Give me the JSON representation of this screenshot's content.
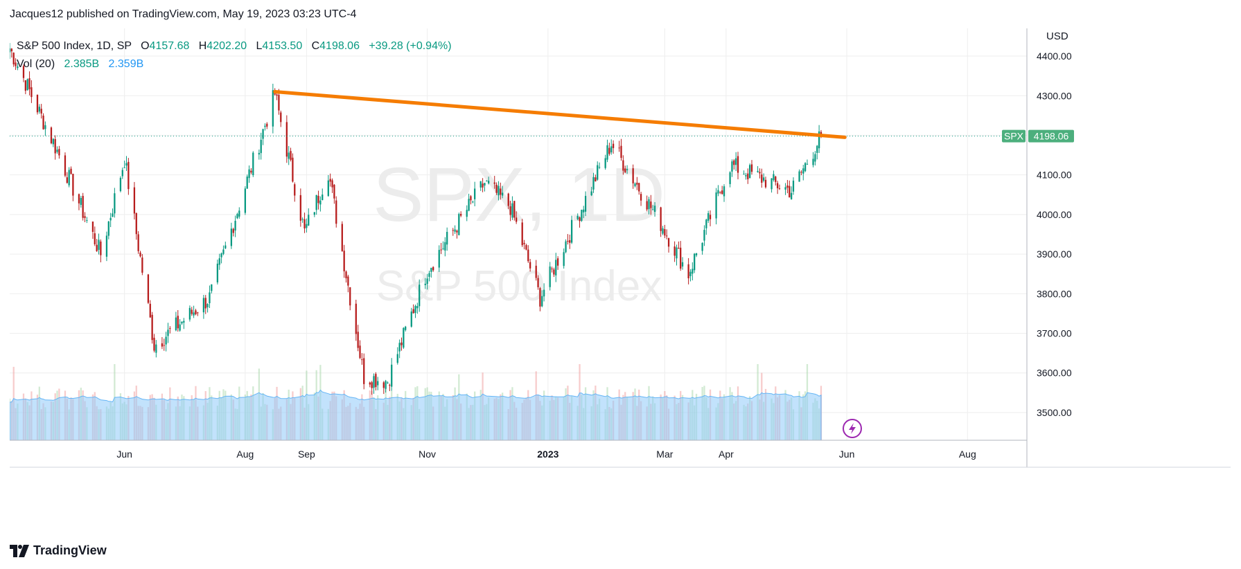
{
  "header": {
    "published": "Jacques12 published on TradingView.com, May 19, 2023 03:23 UTC-4"
  },
  "legend": {
    "symbol_desc": "S&P 500 Index, 1D, SP",
    "open_label": "O",
    "open": "4157.68",
    "high_label": "H",
    "high": "4202.20",
    "low_label": "L",
    "low": "4153.50",
    "close_label": "C",
    "close": "4198.06",
    "change": "+39.28 (+0.94%)",
    "vol_label": "Vol (20)",
    "vol_value": "2.385B",
    "vol_ma": "2.359B"
  },
  "watermark": {
    "main": "SPX, 1D",
    "sub": "S&P 500 Index"
  },
  "price_axis": {
    "currency": "USD",
    "ticks": [
      "4400.00",
      "4300.00",
      "4200.00",
      "4100.00",
      "4000.00",
      "3900.00",
      "3800.00",
      "3700.00",
      "3600.00",
      "3500.00"
    ]
  },
  "last_price": {
    "symbol": "SPX",
    "price": "4198.06"
  },
  "time_axis": {
    "ticks": [
      "Jun",
      "Aug",
      "Sep",
      "Nov",
      "2023",
      "Mar",
      "Apr",
      "Jun",
      "Aug"
    ]
  },
  "footer": {
    "brand": "TradingView"
  },
  "colors": {
    "up": "#089981",
    "down": "#b71c1c",
    "trendline": "#f57c00",
    "volume": "#90caf9",
    "grid": "#eeeeee",
    "last_price_bg": "#4caf7d",
    "replay": "#9c27b0"
  },
  "icons": {
    "replay": "lightning-icon",
    "logo": "tradingview-logo-icon"
  },
  "chart_data": {
    "type": "candlestick",
    "xlabel": "",
    "ylabel": "",
    "ylim": [
      3430,
      4470
    ],
    "x_range": [
      "2022-04-04",
      "2023-08-31"
    ],
    "grid": true,
    "trendline": {
      "from": [
        "2022-08-16",
        4310
      ],
      "to": [
        "2023-05-31",
        4195
      ]
    },
    "keypoints": [
      {
        "date": "2022-04-04",
        "close": 4420
      },
      {
        "date": "2022-04-29",
        "close": 4150
      },
      {
        "date": "2022-05-20",
        "close": 3900
      },
      {
        "date": "2022-06-01",
        "close": 4140
      },
      {
        "date": "2022-06-16",
        "close": 3670
      },
      {
        "date": "2022-07-14",
        "close": 3790
      },
      {
        "date": "2022-08-16",
        "close": 4305
      },
      {
        "date": "2022-08-31",
        "close": 3955
      },
      {
        "date": "2022-09-12",
        "close": 4110
      },
      {
        "date": "2022-09-30",
        "close": 3590
      },
      {
        "date": "2022-10-12",
        "close": 3580
      },
      {
        "date": "2022-11-01",
        "close": 3860
      },
      {
        "date": "2022-11-30",
        "close": 4080
      },
      {
        "date": "2022-12-13",
        "close": 4020
      },
      {
        "date": "2022-12-28",
        "close": 3790
      },
      {
        "date": "2023-02-02",
        "close": 4180
      },
      {
        "date": "2023-02-28",
        "close": 3970
      },
      {
        "date": "2023-03-13",
        "close": 3850
      },
      {
        "date": "2023-04-03",
        "close": 4125
      },
      {
        "date": "2023-05-04",
        "close": 4060
      },
      {
        "date": "2023-05-19",
        "close": 4198
      }
    ]
  }
}
